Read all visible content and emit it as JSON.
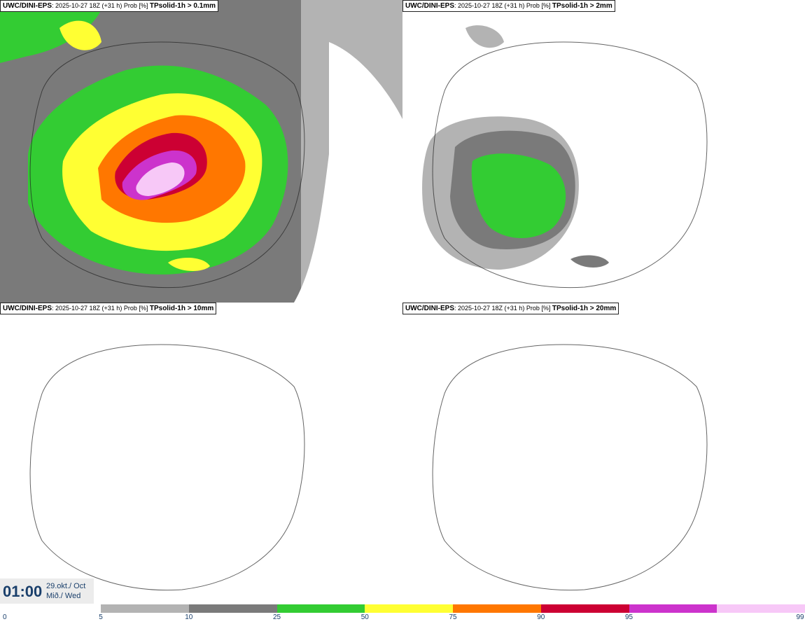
{
  "panels": [
    {
      "model": "UWC/DINI-EPS",
      "run": ": 2025-10-27 18Z (+31 h) Prob [%]",
      "threshold": "TPsolid-1h > 0.1mm"
    },
    {
      "model": "UWC/DINI-EPS",
      "run": ": 2025-10-27 18Z (+31 h) Prob [%]",
      "threshold": "TPsolid-1h > 2mm"
    },
    {
      "model": "UWC/DINI-EPS",
      "run": ": 2025-10-27 18Z (+31 h) Prob [%]",
      "threshold": "TPsolid-1h > 10mm"
    },
    {
      "model": "UWC/DINI-EPS",
      "run": ": 2025-10-27 18Z (+31 h) Prob [%]",
      "threshold": "TPsolid-1h > 20mm"
    }
  ],
  "valid_time": {
    "time": "01:00",
    "date": "29.okt./ Oct",
    "weekday": "Mið./ Wed"
  },
  "colorbar": {
    "ticks": [
      "0",
      "5",
      "10",
      "25",
      "50",
      "75",
      "90",
      "95",
      "99"
    ],
    "colors": [
      "#b3b3b3",
      "#7a7a7a",
      "#33cc33",
      "#ffff33",
      "#ff7700",
      "#cc0033",
      "#cc33cc",
      "#f7c8f7"
    ]
  }
}
